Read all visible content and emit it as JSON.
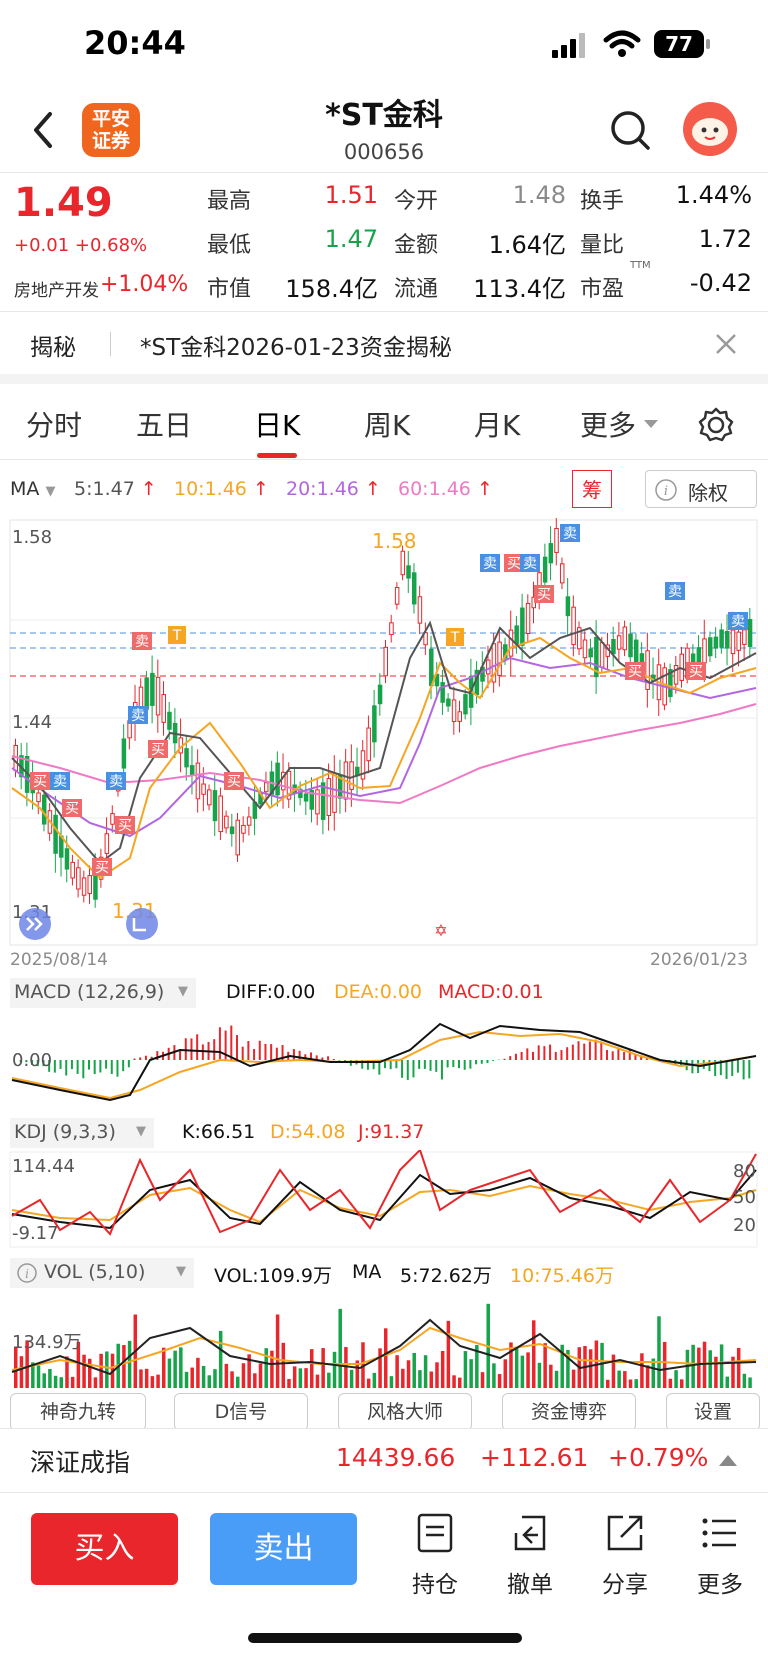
{
  "status": {
    "time": "20:44",
    "battery": "77"
  },
  "header": {
    "logo_line1": "平安",
    "logo_line2": "证券",
    "title": "*ST金科",
    "code": "000656"
  },
  "quote": {
    "price": "1.49",
    "change": "+0.01 +0.68%",
    "sector": "房地产开发",
    "sector_change": "+1.04%",
    "rows": [
      [
        {
          "label": "最高",
          "value": "1.51"
        },
        {
          "label": "今开",
          "value": "1.48"
        },
        {
          "label": "换手",
          "value": "1.44%"
        }
      ],
      [
        {
          "label": "最低",
          "value": "1.47"
        },
        {
          "label": "金额",
          "value": "1.64亿"
        },
        {
          "label": "量比",
          "value": "1.72"
        }
      ],
      [
        {
          "label": "市值",
          "value": "158.4亿"
        },
        {
          "label": "流通",
          "value": "113.4亿"
        },
        {
          "label": "市盈",
          "value": "-0.42"
        }
      ]
    ],
    "ttm": "TTM"
  },
  "reveal": {
    "label": "揭秘",
    "text": "*ST金科2026-01-23资金揭秘"
  },
  "tabs": [
    "分时",
    "五日",
    "日K",
    "周K",
    "月K",
    "更多"
  ],
  "ma_bar": {
    "ma": "MA",
    "ma5": "5:1.47",
    "ma10": "10:1.46",
    "ma20": "20:1.46",
    "ma60": "60:1.46",
    "chip": "筹",
    "adjust": "除权",
    "colors": {
      "ma5": "#555555",
      "ma10": "#f5a623",
      "ma20": "#b266e0",
      "ma60": "#ef79c5"
    }
  },
  "kchart": {
    "y_top": "1.58",
    "y_mid": "1.44",
    "y_low": "1.31",
    "peak_label": "1.58",
    "low_label": "1.31",
    "date_start": "2025/08/14",
    "date_end": "2026/01/23",
    "marks_buy": "买",
    "marks_sell": "卖",
    "mark_t": "T"
  },
  "macd": {
    "title": "MACD (12,26,9)",
    "diff": "DIFF:0.00",
    "dea": "DEA:0.00",
    "macd": "MACD:0.01",
    "axis": "0.00"
  },
  "kdj": {
    "title": "KDJ (9,3,3)",
    "k": "K:66.51",
    "d": "D:54.08",
    "j": "J:91.37",
    "top": "114.44",
    "bottom": "-9.17",
    "l80": "80",
    "l50": "50",
    "l20": "20"
  },
  "vol": {
    "title": "VOL (5,10)",
    "vol": "VOL:109.9万",
    "ma": "MA",
    "ma5": "5:72.62万",
    "ma10": "10:75.46万",
    "axis": "134.9万"
  },
  "tools": [
    "神奇九转",
    "D信号",
    "风格大师",
    "资金博弈",
    "设置"
  ],
  "index": {
    "name": "深证成指",
    "value": "14439.66",
    "change": "+112.61",
    "pct": "+0.79%"
  },
  "bottom": {
    "buy": "买入",
    "sell": "卖出",
    "actions": [
      "持仓",
      "撤单",
      "分享",
      "更多"
    ]
  }
}
